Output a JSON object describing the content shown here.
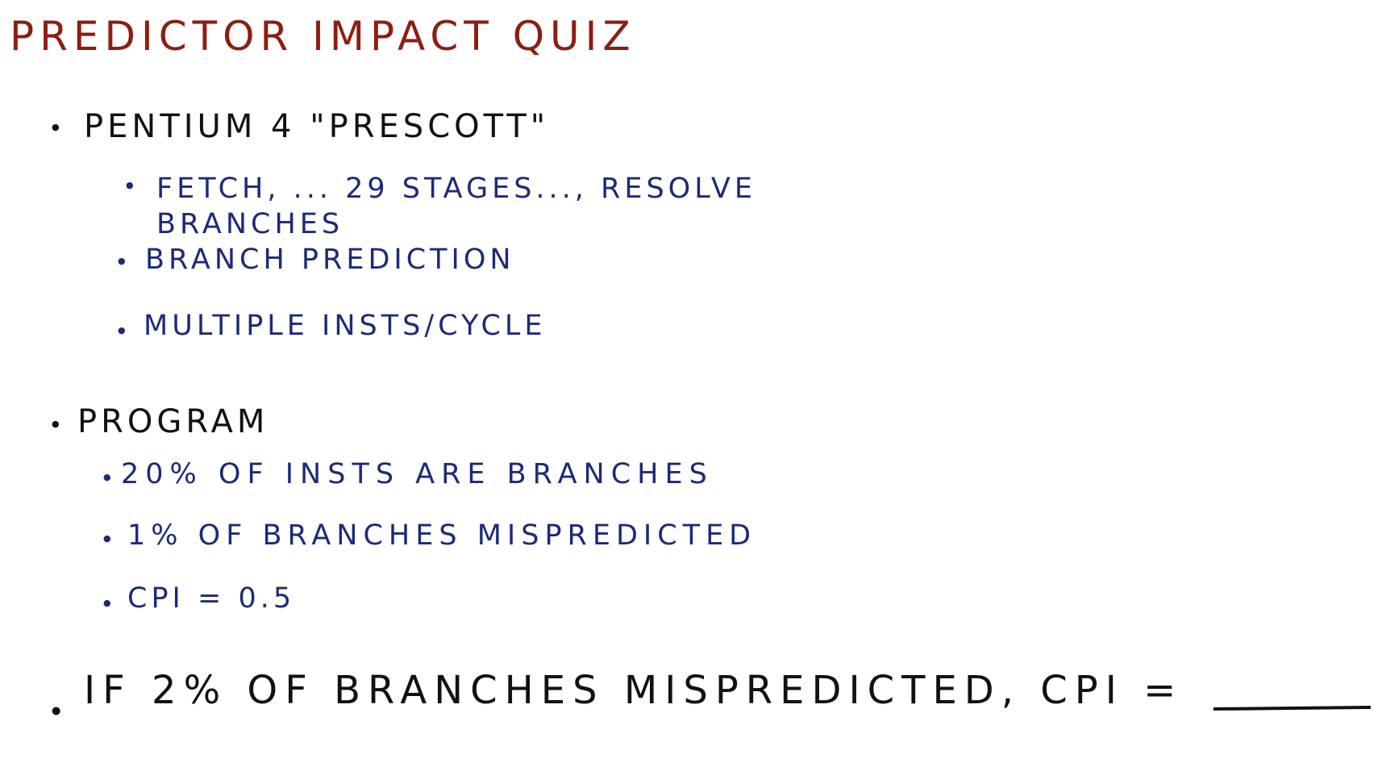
{
  "title": "PREDICTOR IMPACT QUIZ",
  "sections": [
    {
      "heading": "PENTIUM 4 \"PRESCOTT\"",
      "items": [
        "FETCH, ... 29 STAGES..., RESOLVE BRANCHES",
        "BRANCH PREDICTION",
        "MULTIPLE INSTS/CYCLE"
      ]
    },
    {
      "heading": "PROGRAM",
      "items": [
        "20% OF INSTS ARE BRANCHES",
        "1% OF BRANCHES MISPREDICTED",
        "CPI = 0.5"
      ]
    }
  ],
  "question": {
    "text": "IF 2% OF BRANCHES MISPREDICTED, CPI ="
  },
  "colors": {
    "title": "#8b1e12",
    "heading": "#111111",
    "subitem": "#1d2a78"
  }
}
